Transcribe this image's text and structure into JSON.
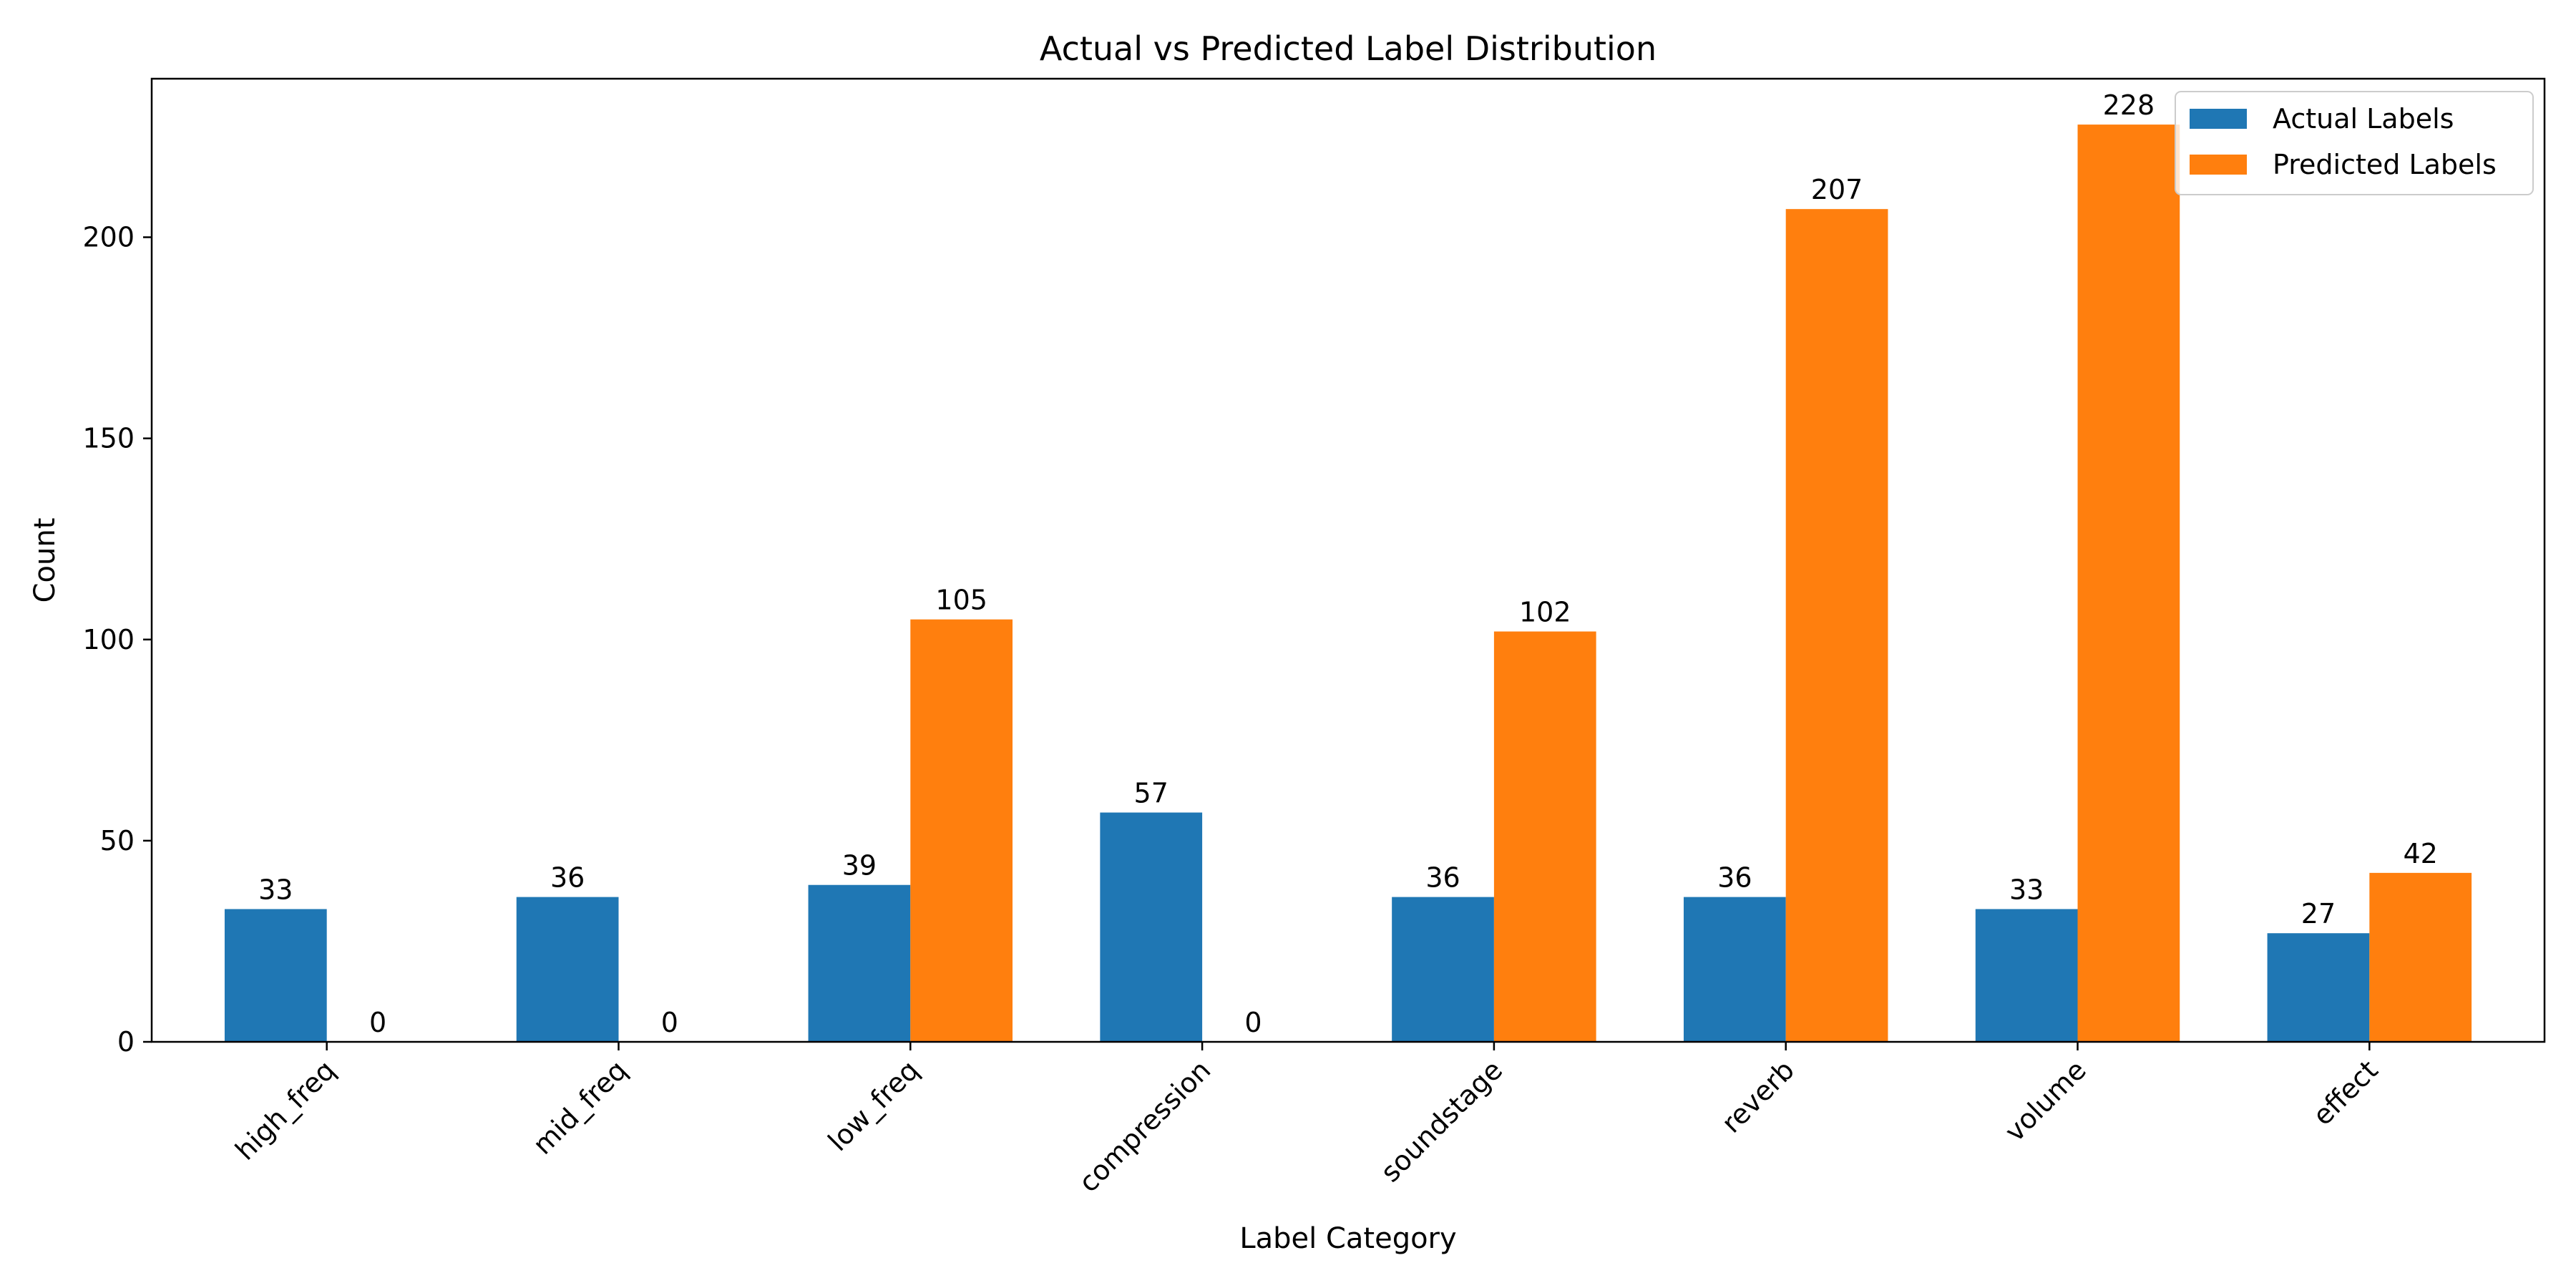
{
  "chart_data": {
    "type": "bar",
    "title": "Actual vs Predicted Label Distribution",
    "xlabel": "Label Category",
    "ylabel": "Count",
    "categories": [
      "high_freq",
      "mid_freq",
      "low_freq",
      "compression",
      "soundstage",
      "reverb",
      "volume",
      "effect"
    ],
    "series": [
      {
        "name": "Actual Labels",
        "color": "#1f77b4",
        "values": [
          33,
          36,
          39,
          57,
          36,
          36,
          33,
          27
        ]
      },
      {
        "name": "Predicted Labels",
        "color": "#ff7f0e",
        "values": [
          0,
          0,
          105,
          0,
          102,
          207,
          228,
          42
        ]
      }
    ],
    "ylim": [
      0,
      239.4
    ],
    "yticks": [
      0,
      50,
      100,
      150,
      200
    ],
    "legend_position": "top-right",
    "grid": false,
    "data_labels": true
  }
}
